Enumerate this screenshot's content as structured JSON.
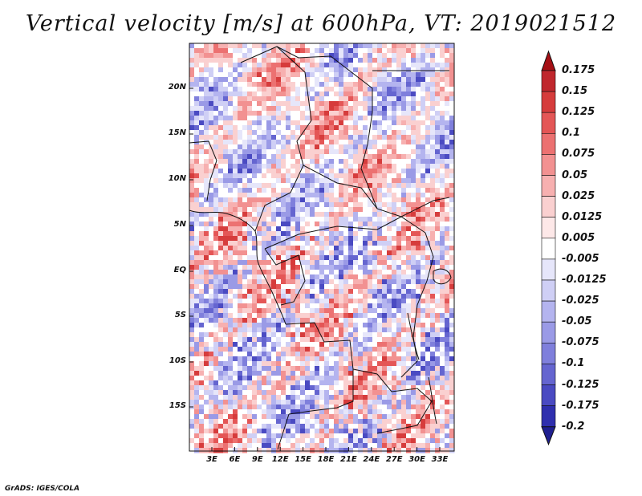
{
  "title": "Vertical velocity [m/s] at 600hPa, VT: 2019021512",
  "credit": "GrADS: IGES/COLA",
  "map": {
    "lat_labels": [
      "20N",
      "15N",
      "10N",
      "5N",
      "EQ",
      "5S",
      "10S",
      "15S"
    ],
    "lon_labels": [
      "3E",
      "6E",
      "9E",
      "12E",
      "15E",
      "18E",
      "21E",
      "24E",
      "27E",
      "30E",
      "33E"
    ]
  },
  "colorbar": {
    "labels": [
      "0.175",
      "0.15",
      "0.125",
      "0.1",
      "0.075",
      "0.05",
      "0.025",
      "0.0125",
      "0.005",
      "-0.005",
      "-0.0125",
      "-0.025",
      "-0.05",
      "-0.075",
      "-0.1",
      "-0.125",
      "-0.175",
      "-0.2"
    ],
    "colors": [
      "#a50f15",
      "#c0272d",
      "#d63c3c",
      "#e45656",
      "#ec7171",
      "#f29191",
      "#f7b0b0",
      "#fad0d0",
      "#fde8e8",
      "#ffffff",
      "#e6e6fa",
      "#cfcff5",
      "#b4b4ef",
      "#9a9ae6",
      "#7f7fdc",
      "#6565d0",
      "#4a4ac2",
      "#2f2fae",
      "#1f1f90"
    ]
  }
}
